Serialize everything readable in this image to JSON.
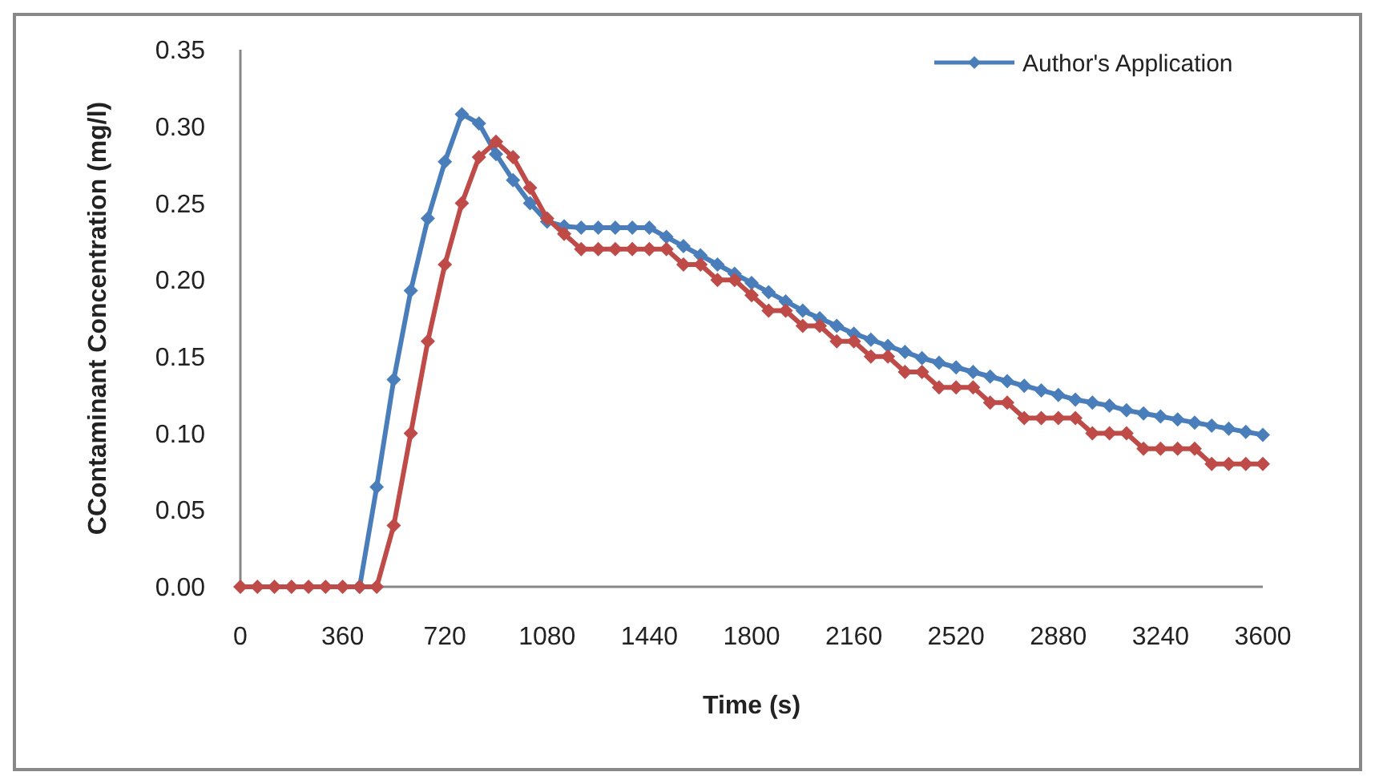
{
  "chart_data": {
    "type": "line",
    "xlabel": "Time (s)",
    "ylabel": "CContaminant Concentration (mg/l)",
    "x": [
      0,
      60,
      120,
      180,
      240,
      300,
      360,
      420,
      480,
      540,
      600,
      660,
      720,
      780,
      840,
      900,
      960,
      1020,
      1080,
      1140,
      1200,
      1260,
      1320,
      1380,
      1440,
      1500,
      1560,
      1620,
      1680,
      1740,
      1800,
      1860,
      1920,
      1980,
      2040,
      2100,
      2160,
      2220,
      2280,
      2340,
      2400,
      2460,
      2520,
      2580,
      2640,
      2700,
      2760,
      2820,
      2880,
      2940,
      3000,
      3060,
      3120,
      3180,
      3240,
      3300,
      3360,
      3420,
      3480,
      3540,
      3600
    ],
    "series": [
      {
        "name": "Author's Application",
        "color": "#4a7ebb",
        "values": [
          null,
          null,
          null,
          null,
          null,
          null,
          null,
          0,
          0.065,
          0.135,
          0.193,
          0.24,
          0.277,
          0.308,
          0.302,
          0.282,
          0.265,
          0.25,
          0.238,
          0.235,
          0.234,
          0.234,
          0.234,
          0.234,
          0.234,
          0.228,
          0.222,
          0.216,
          0.21,
          0.204,
          0.198,
          0.192,
          0.186,
          0.18,
          0.175,
          0.17,
          0.165,
          0.161,
          0.157,
          0.153,
          0.149,
          0.146,
          0.143,
          0.14,
          0.137,
          0.134,
          0.131,
          0.128,
          0.125,
          0.122,
          0.12,
          0.118,
          0.115,
          0.113,
          0.111,
          0.109,
          0.107,
          0.105,
          0.103,
          0.101,
          0.099
        ]
      },
      {
        "color": "#be4b48",
        "values": [
          0,
          0,
          0,
          0,
          0,
          0,
          0,
          0,
          0,
          0.04,
          0.1,
          0.16,
          0.21,
          0.25,
          0.28,
          0.29,
          0.28,
          0.26,
          0.24,
          0.23,
          0.22,
          0.22,
          0.22,
          0.22,
          0.22,
          0.22,
          0.21,
          0.21,
          0.2,
          0.2,
          0.19,
          0.18,
          0.18,
          0.17,
          0.17,
          0.16,
          0.16,
          0.15,
          0.15,
          0.14,
          0.14,
          0.13,
          0.13,
          0.13,
          0.12,
          0.12,
          0.11,
          0.11,
          0.11,
          0.11,
          0.1,
          0.1,
          0.1,
          0.09,
          0.09,
          0.09,
          0.09,
          0.08,
          0.08,
          0.08,
          0.08
        ]
      }
    ],
    "xlim": [
      0,
      3600
    ],
    "xticks": [
      0,
      360,
      720,
      1080,
      1440,
      1800,
      2160,
      2520,
      2880,
      3240,
      3600
    ],
    "ylim": [
      0,
      0.35
    ],
    "yticks": [
      {
        "value": 0,
        "label": "0.00"
      },
      {
        "value": 0.05,
        "label": "0.05"
      },
      {
        "value": 0.1,
        "label": "0.10"
      },
      {
        "value": 0.15,
        "label": "0.15"
      },
      {
        "value": 0.2,
        "label": "0.20"
      },
      {
        "value": 0.25,
        "label": "0.25"
      },
      {
        "value": 0.3,
        "label": "0.30"
      },
      {
        "value": 0.35,
        "label": "0.35"
      }
    ],
    "grid": false,
    "legend": "top right",
    "marker": "diamond",
    "line_style": "solid"
  }
}
